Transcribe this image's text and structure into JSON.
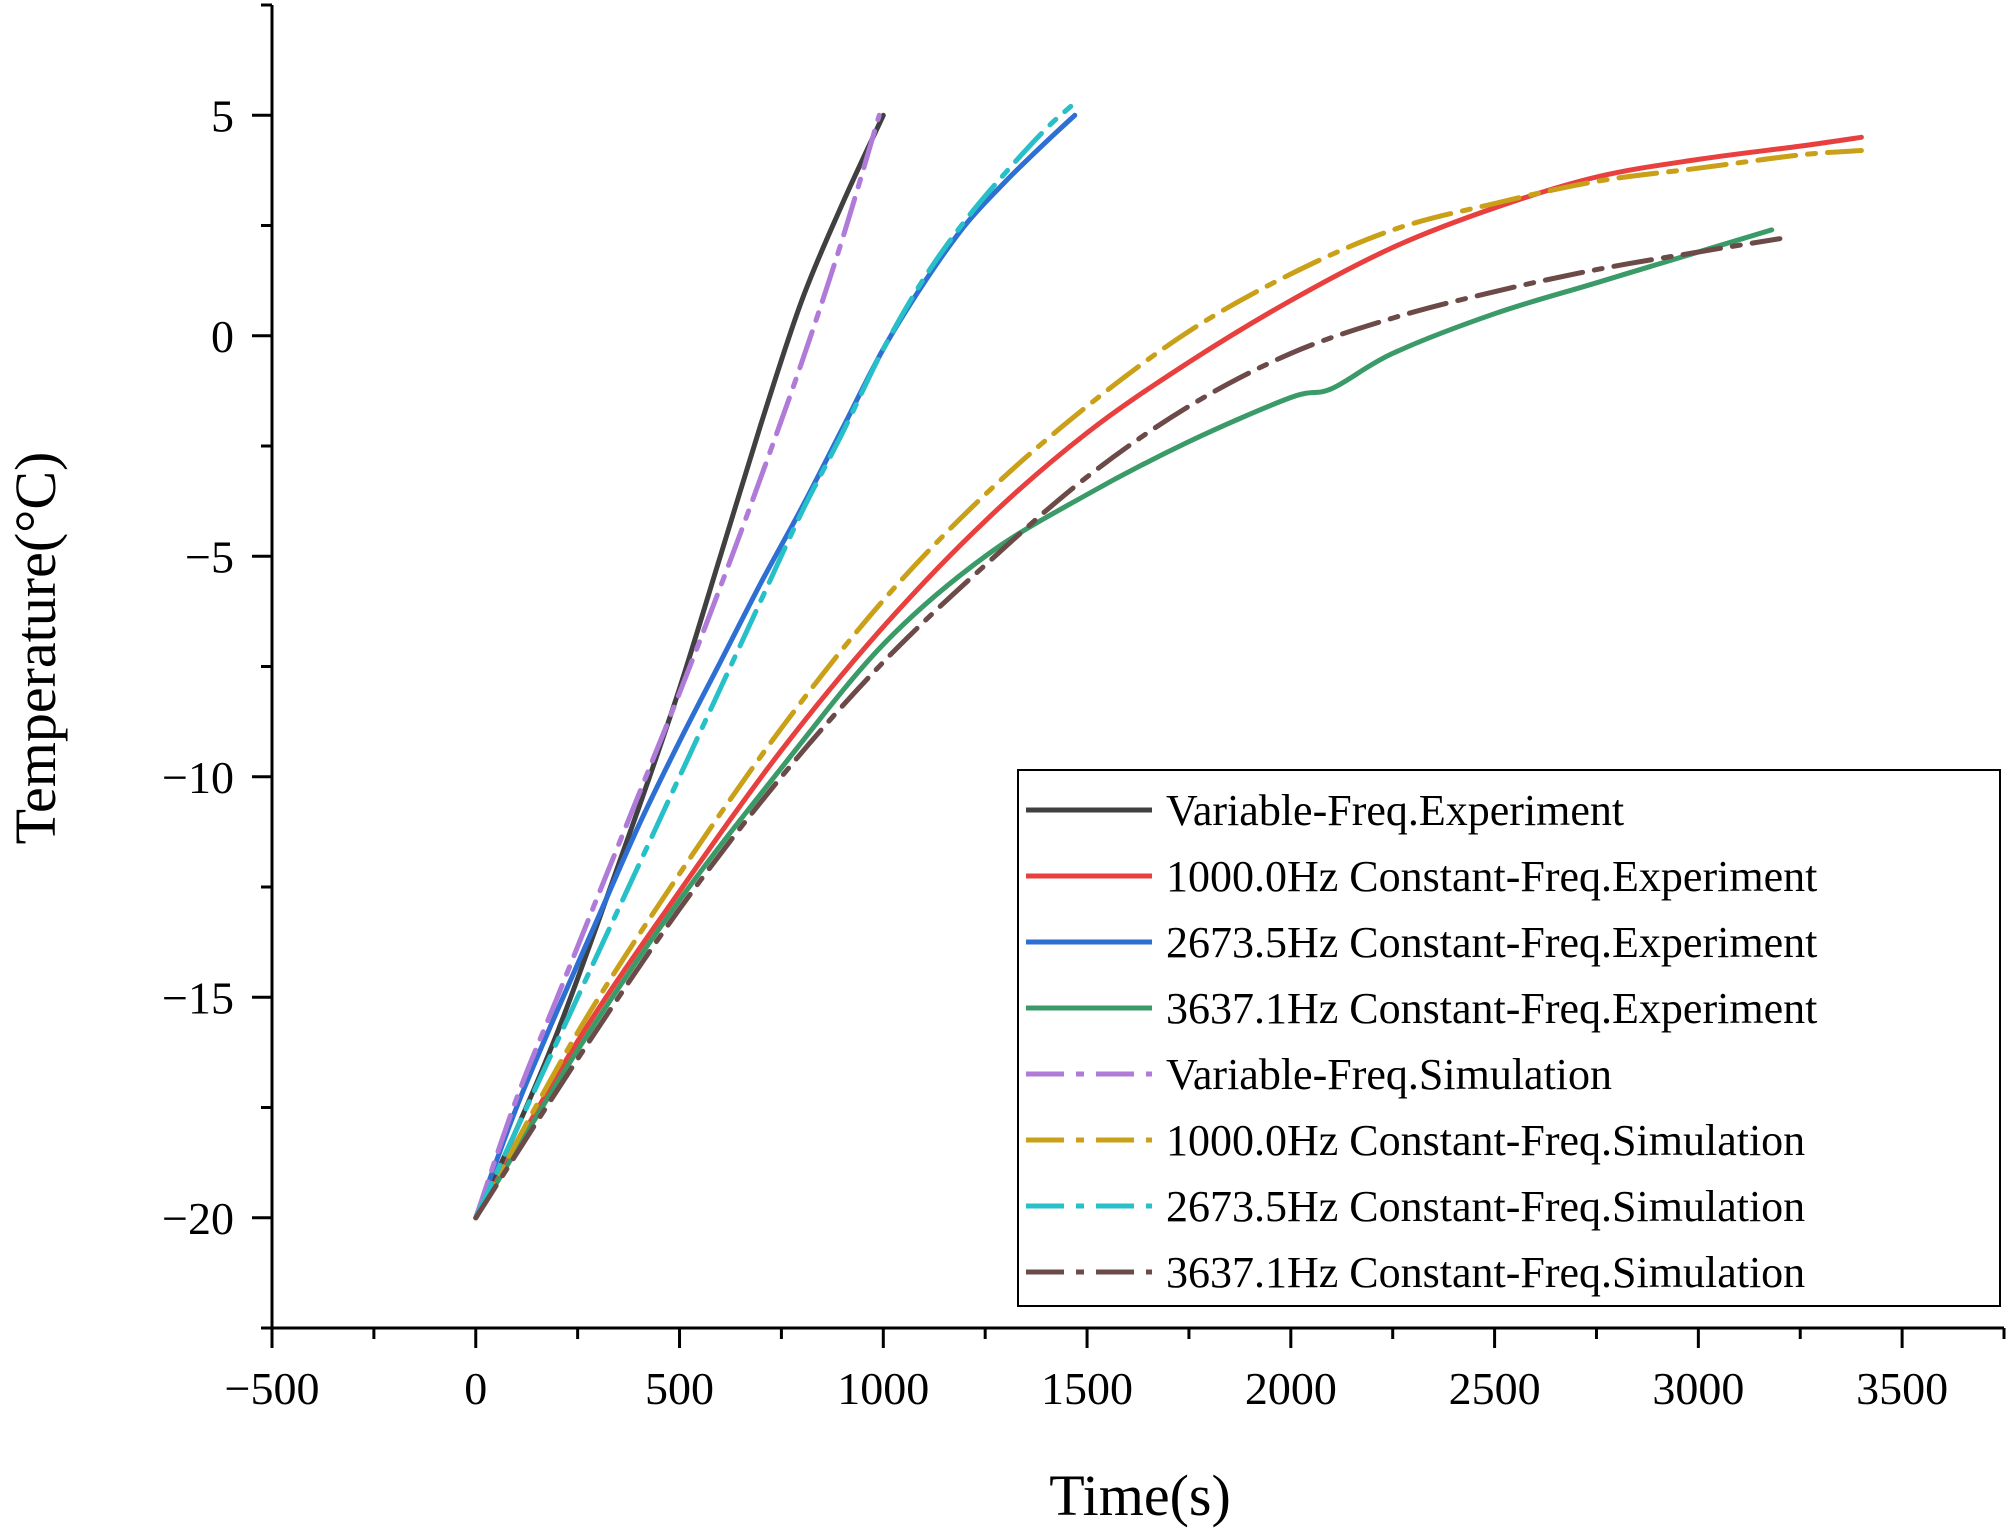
{
  "chart_data": {
    "type": "line",
    "title": "",
    "xlabel": "Time(s)",
    "ylabel": "Temperature(°C)",
    "xlim": [
      -500,
      3750
    ],
    "ylim": [
      -22.5,
      7.5
    ],
    "xticks": [
      -500,
      0,
      500,
      1000,
      1500,
      2000,
      2500,
      3000,
      3500
    ],
    "yticks": [
      -20,
      -15,
      -10,
      -5,
      0,
      5
    ],
    "xtick_labels": [
      "−500",
      "0",
      "500",
      "1000",
      "1500",
      "2000",
      "2500",
      "3000",
      "3500"
    ],
    "ytick_labels": [
      "−20",
      "−15",
      "−10",
      "−5",
      "0",
      "5"
    ],
    "grid": false,
    "legend_position": "bottom-right",
    "series": [
      {
        "name": "Variable-Freq.Experiment",
        "color": "#404040",
        "style": "solid",
        "x": [
          0,
          100,
          200,
          300,
          400,
          500,
          600,
          700,
          800,
          900,
          1000
        ],
        "y": [
          -20,
          -18.0,
          -15.8,
          -13.3,
          -10.7,
          -8.0,
          -5.0,
          -2.0,
          0.8,
          3.0,
          5.0
        ]
      },
      {
        "name": "1000.0Hz Constant-Freq.Experiment",
        "color": "#e8403f",
        "style": "solid",
        "x": [
          0,
          250,
          500,
          750,
          1000,
          1250,
          1500,
          1750,
          2000,
          2250,
          2500,
          2750,
          3000,
          3250,
          3400
        ],
        "y": [
          -20,
          -16.0,
          -12.6,
          -9.4,
          -6.6,
          -4.2,
          -2.2,
          -0.6,
          0.8,
          2.0,
          2.9,
          3.6,
          4.0,
          4.3,
          4.5
        ]
      },
      {
        "name": "2673.5Hz Constant-Freq.Experiment",
        "color": "#2e6fd3",
        "style": "solid",
        "x": [
          0,
          100,
          200,
          300,
          400,
          500,
          600,
          700,
          800,
          900,
          1000,
          1100,
          1200,
          1300,
          1400,
          1470
        ],
        "y": [
          -20,
          -17.5,
          -15.3,
          -13.2,
          -11.1,
          -9.2,
          -7.4,
          -5.6,
          -3.9,
          -2.1,
          -0.3,
          1.2,
          2.5,
          3.5,
          4.4,
          5.0
        ]
      },
      {
        "name": "3637.1Hz Constant-Freq.Experiment",
        "color": "#3a9a68",
        "style": "solid",
        "x": [
          0,
          250,
          500,
          750,
          1000,
          1250,
          1500,
          1750,
          2000,
          2100,
          2250,
          2500,
          2750,
          3000,
          3180
        ],
        "y": [
          -20,
          -16.2,
          -12.8,
          -9.8,
          -7.0,
          -5.0,
          -3.6,
          -2.4,
          -1.4,
          -1.2,
          -0.4,
          0.5,
          1.2,
          1.9,
          2.4
        ]
      },
      {
        "name": "Variable-Freq.Simulation",
        "color": "#b07ad9",
        "style": "dashdot",
        "x": [
          0,
          100,
          200,
          300,
          400,
          500,
          600,
          700,
          800,
          900,
          990
        ],
        "y": [
          -20,
          -17.3,
          -15.0,
          -12.7,
          -10.4,
          -8.1,
          -5.7,
          -3.2,
          -0.6,
          2.2,
          5.0
        ]
      },
      {
        "name": "1000.0Hz Constant-Freq.Simulation",
        "color": "#c9a017",
        "style": "dashdot",
        "x": [
          0,
          250,
          500,
          750,
          1000,
          1250,
          1500,
          1750,
          2000,
          2250,
          2500,
          2750,
          3000,
          3250,
          3400
        ],
        "y": [
          -20,
          -15.8,
          -12.2,
          -8.9,
          -6.0,
          -3.6,
          -1.6,
          0.1,
          1.4,
          2.4,
          3.0,
          3.5,
          3.8,
          4.1,
          4.2
        ]
      },
      {
        "name": "2673.5Hz Constant-Freq.Simulation",
        "color": "#28c0c8",
        "style": "dashdot",
        "x": [
          0,
          100,
          200,
          300,
          400,
          500,
          600,
          700,
          800,
          900,
          1000,
          1100,
          1200,
          1300,
          1400,
          1460
        ],
        "y": [
          -20,
          -18.0,
          -16.0,
          -14.0,
          -12.0,
          -10.0,
          -8.0,
          -6.0,
          -4.0,
          -2.2,
          -0.3,
          1.3,
          2.6,
          3.7,
          4.7,
          5.2
        ]
      },
      {
        "name": "3637.1Hz Constant-Freq.Simulation",
        "color": "#6b4a48",
        "style": "dashdot",
        "x": [
          0,
          250,
          500,
          750,
          1000,
          1250,
          1500,
          1750,
          2000,
          2250,
          2500,
          2750,
          3000,
          3200
        ],
        "y": [
          -20,
          -16.4,
          -13.0,
          -10.0,
          -7.4,
          -5.2,
          -3.2,
          -1.6,
          -0.4,
          0.4,
          1.0,
          1.5,
          1.9,
          2.2
        ]
      }
    ]
  }
}
